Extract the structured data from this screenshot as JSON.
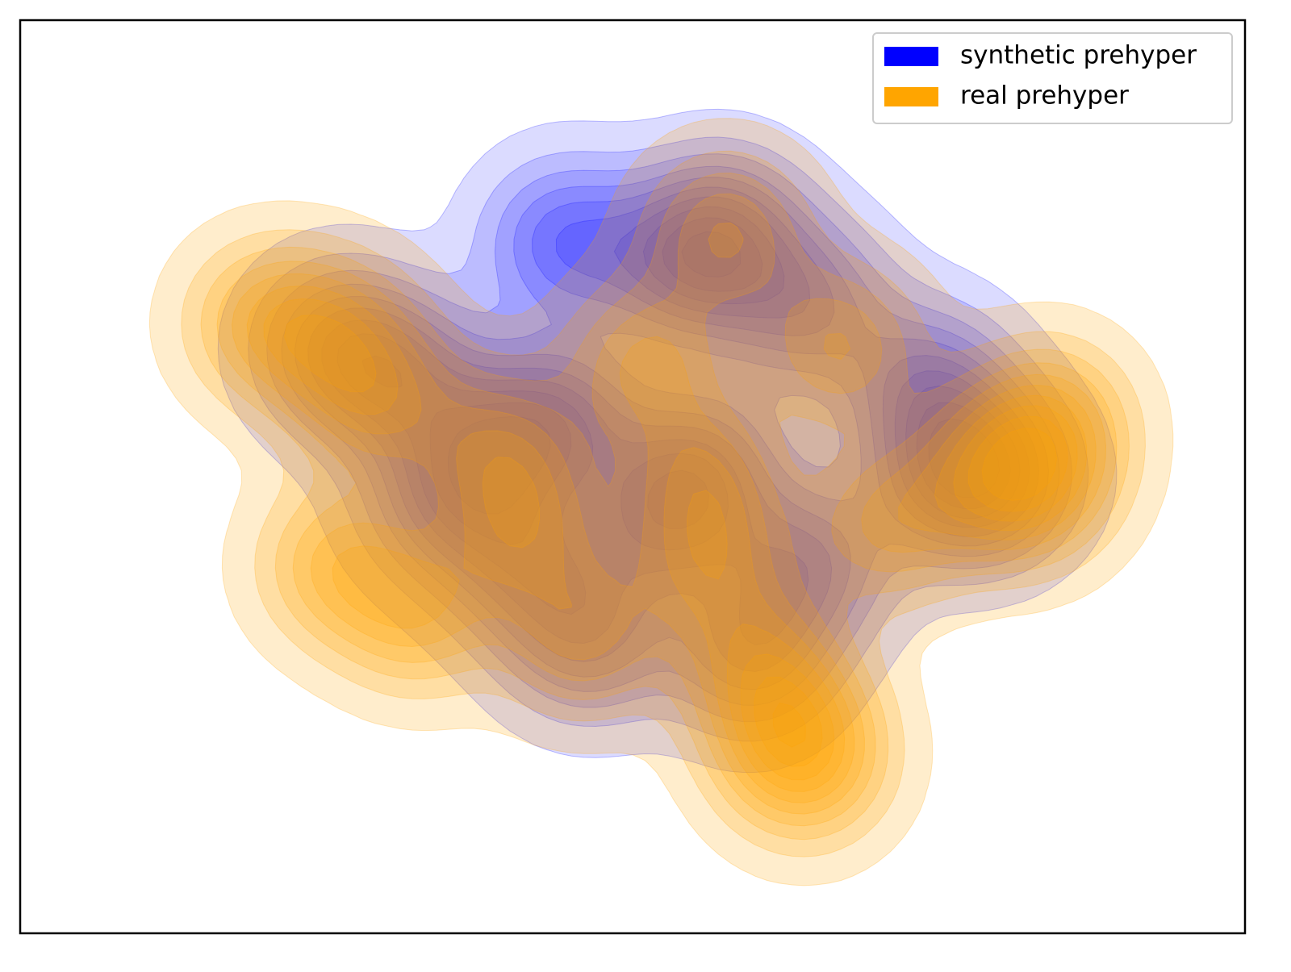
{
  "chart_data": {
    "type": "kde",
    "xlim": [
      0,
      100
    ],
    "ylim": [
      0,
      75
    ],
    "legend": "upper right",
    "series": [
      {
        "name": "synthetic prehyper",
        "color": "blue",
        "x": [
          39.2,
          44.5,
          55.7,
          57.6,
          54.3,
          79.4,
          76.1,
          59.6,
          46.4,
          26.0,
          31.3,
          34.6,
          52.4,
          64.2,
          41.2,
          74.1,
          44.5,
          64.2
        ],
        "y": [
          40.2,
          42.2,
          38.2,
          57.5,
          54.8,
          37.6,
          37.6,
          23.0,
          24.3,
          48.2,
          45.5,
          35.6,
          33.6,
          30.3,
          30.3,
          44.9,
          56.8,
          51.5
        ]
      },
      {
        "name": "real prehyper",
        "color": "orange",
        "x": [
          39.2,
          55.7,
          57.6,
          79.4,
          82.7,
          60.3,
          62.9,
          64.2,
          26.0,
          20.1,
          29.3,
          26.0,
          32.6,
          45.8,
          51.1,
          70.8,
          84.0,
          41.2,
          66.9,
          56.3
        ],
        "y": [
          39.6,
          37.6,
          57.5,
          37.6,
          36.9,
          22.3,
          17.0,
          13.7,
          48.8,
          50.2,
          43.5,
          30.3,
          26.3,
          24.3,
          46.8,
          33.6,
          42.2,
          32.9,
          48.2,
          30.3
        ]
      }
    ]
  }
}
